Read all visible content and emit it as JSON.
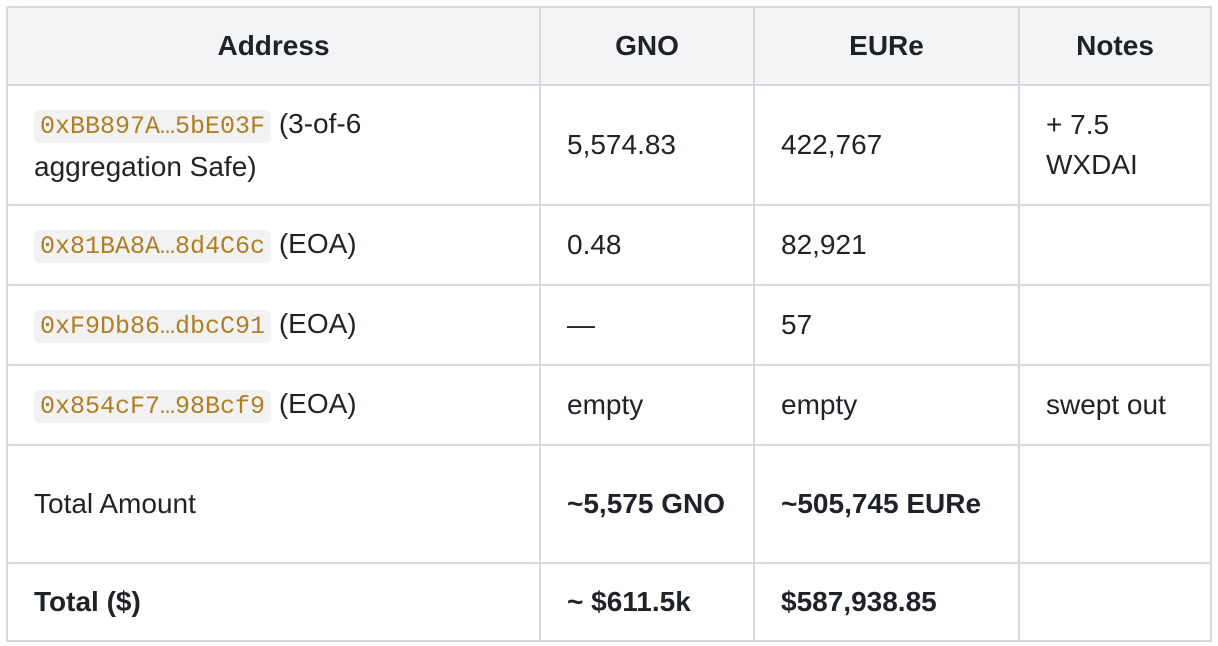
{
  "table": {
    "header": [
      "Address",
      "GNO",
      "EURe",
      "Notes"
    ],
    "rows": [
      [
        {
          "code": "0xBB897A…5bE03F",
          "text": "(3-of-6 aggregation Safe)"
        },
        "5,574.83",
        "422,767",
        "+ 7.5 WXDAI"
      ],
      [
        {
          "code": "0x81BA8A…8d4C6c",
          "text": "(EOA)"
        },
        "0.48",
        "82,921",
        null
      ],
      [
        {
          "code": "0xF9Db86…dbcC91",
          "text": "(EOA)"
        },
        "—",
        "57",
        null
      ],
      [
        {
          "code": "0x854cF7…98Bcf9",
          "text": "(EOA)"
        },
        "empty",
        "empty",
        "swept out"
      ],
      [
        "Total Amount",
        "~5,575 GNO",
        "~505,745 EURe",
        null
      ],
      [
        "Total ($)",
        "~ $611.5k",
        "$587,938.85",
        null
      ]
    ]
  }
}
